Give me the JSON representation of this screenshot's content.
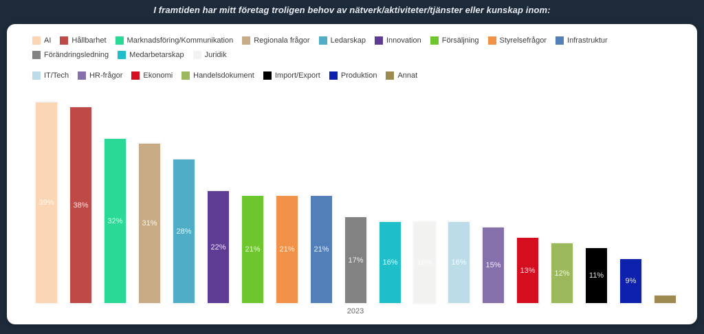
{
  "title": "I framtiden har mitt företag troligen behov av nätverk/aktiviteter/tjänster eller kunskap inom:",
  "chart_data": {
    "type": "bar",
    "title": "I framtiden har mitt företag troligen behov av nätverk/aktiviteter/tjänster eller kunskap inom:",
    "xlabel": "",
    "ylabel": "",
    "x_tick_label": "2023",
    "ylim": [
      0,
      40
    ],
    "grid": false,
    "legend_position": "top",
    "legend_rows": [
      12,
      7
    ],
    "value_suffix": "%",
    "bars": [
      {
        "label": "AI",
        "value": 39,
        "data_label": "39%",
        "color": "#FAD6B4"
      },
      {
        "label": "Hållbarhet",
        "value": 38,
        "data_label": "38%",
        "color": "#BD4A47"
      },
      {
        "label": "Marknadsföring/Kommunikation",
        "value": 32,
        "data_label": "32%",
        "color": "#2BD996"
      },
      {
        "label": "Regionala frågor",
        "value": 31,
        "data_label": "31%",
        "color": "#C6AB84"
      },
      {
        "label": "Ledarskap",
        "value": 28,
        "data_label": "28%",
        "color": "#4FADC5"
      },
      {
        "label": "Innovation",
        "value": 22,
        "data_label": "22%",
        "color": "#5E3C93"
      },
      {
        "label": "Försäljning",
        "value": 21,
        "data_label": "21%",
        "color": "#6DC62E"
      },
      {
        "label": "Styrelsefrågor",
        "value": 21,
        "data_label": "21%",
        "color": "#F29249"
      },
      {
        "label": "Infrastruktur",
        "value": 21,
        "data_label": "21%",
        "color": "#527FB8"
      },
      {
        "label": "Förändringsledning",
        "value": 17,
        "data_label": "17%",
        "color": "#828282"
      },
      {
        "label": "Medarbetarskap",
        "value": 16,
        "data_label": "16%",
        "color": "#1FBFC9"
      },
      {
        "label": "Juridik",
        "value": 16,
        "data_label": "16%",
        "color": "#F2F2F0"
      },
      {
        "label": "IT/Tech",
        "value": 16,
        "data_label": "16%",
        "color": "#BCDDE8"
      },
      {
        "label": "HR-frågor",
        "value": 15,
        "data_label": "15%",
        "color": "#8570AB"
      },
      {
        "label": "Ekonomi",
        "value": 13,
        "data_label": "13%",
        "color": "#D40E1F"
      },
      {
        "label": "Handelsdokument",
        "value": 12,
        "data_label": "12%",
        "color": "#9BB85C"
      },
      {
        "label": "Import/Export",
        "value": 11,
        "data_label": "11%",
        "color": "#000000"
      },
      {
        "label": "Produktion",
        "value": 9,
        "data_label": "9%",
        "color": "#0D21AC"
      },
      {
        "label": "Annat",
        "value": 2,
        "data_label": "",
        "color": "#9C8A50"
      }
    ]
  }
}
